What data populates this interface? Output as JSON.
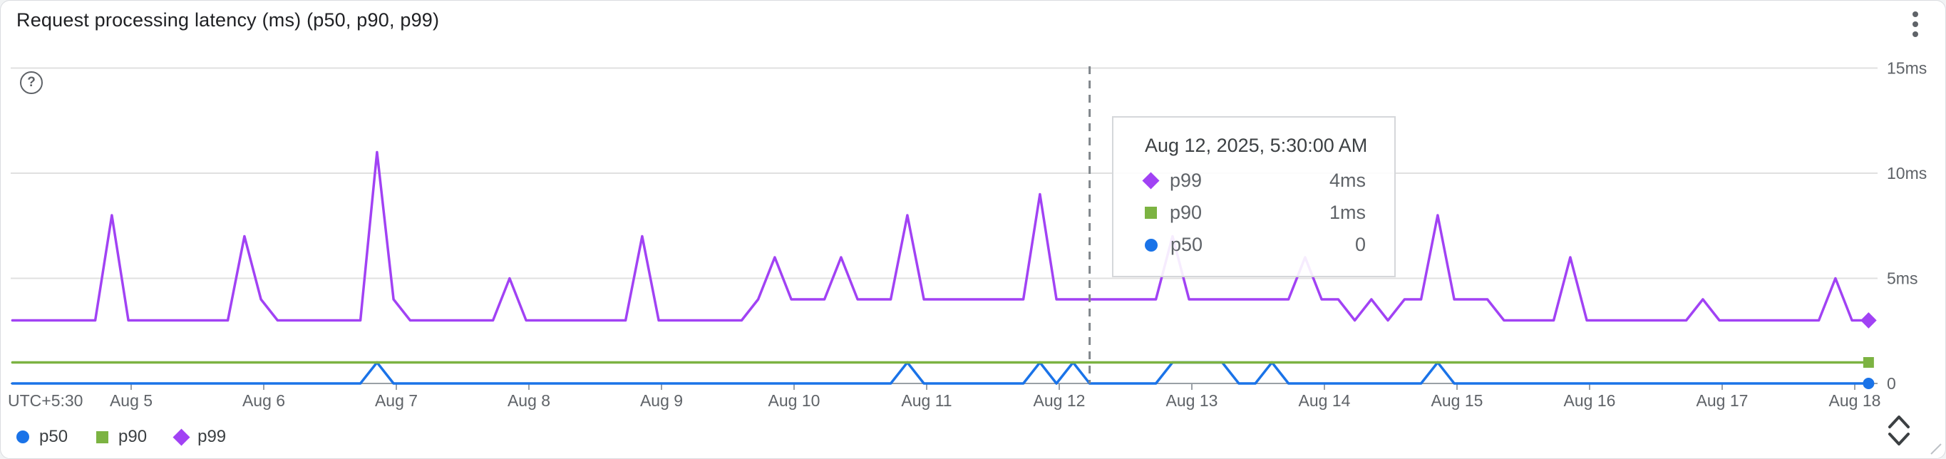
{
  "header": {
    "title": "Request processing latency (ms) (p50, p90, p99)",
    "menu_icon": "kebab-menu",
    "help_icon": "help-circle",
    "help_glyph": "?"
  },
  "chart_data": {
    "type": "line",
    "title": "Request processing latency (ms) (p50, p90, p99)",
    "x_unit": "hours since Aug 4, 2025 00:00 (UTC+5:30)",
    "sample_interval_hours": 3,
    "grid": "horizontal-only",
    "legend_position": "bottom-left",
    "x_axis": {
      "corner_label": "UTC+5:30",
      "tick_labels": [
        "Aug 5",
        "Aug 6",
        "Aug 7",
        "Aug 8",
        "Aug 9",
        "Aug 10",
        "Aug 11",
        "Aug 12",
        "Aug 13",
        "Aug 14",
        "Aug 15",
        "Aug 16",
        "Aug 17",
        "Aug 18"
      ],
      "tick_hours": [
        24,
        48,
        72,
        96,
        120,
        144,
        168,
        192,
        216,
        240,
        264,
        288,
        312,
        336
      ]
    },
    "y_axis": {
      "range_ms": [
        0,
        15
      ],
      "ticks": [
        {
          "value": 0,
          "label": "0"
        },
        {
          "value": 5,
          "label": "5ms"
        },
        {
          "value": 10,
          "label": "10ms"
        },
        {
          "value": 15,
          "label": "15ms"
        }
      ]
    },
    "series": [
      {
        "id": "p50",
        "label": "p50",
        "color": "#1a73e8",
        "marker": "circle",
        "points": [
          [
            2.5,
            0
          ],
          [
            65.5,
            0
          ],
          [
            68.5,
            1
          ],
          [
            71.5,
            0
          ],
          [
            161.5,
            0
          ],
          [
            164.5,
            1
          ],
          [
            167.5,
            0
          ],
          [
            185.5,
            0
          ],
          [
            188.5,
            1
          ],
          [
            191.5,
            0
          ],
          [
            194.5,
            1
          ],
          [
            197.5,
            0
          ],
          [
            209.5,
            0
          ],
          [
            212.5,
            1
          ],
          [
            221.5,
            1
          ],
          [
            224.5,
            0
          ],
          [
            227.5,
            0
          ],
          [
            230.5,
            1
          ],
          [
            233.5,
            0
          ],
          [
            257.5,
            0
          ],
          [
            260.5,
            1
          ],
          [
            263.5,
            0
          ],
          [
            338.5,
            0
          ]
        ]
      },
      {
        "id": "p90",
        "label": "p90",
        "color": "#7cb342",
        "marker": "square",
        "points": [
          [
            2.5,
            1
          ],
          [
            338.5,
            1
          ]
        ]
      },
      {
        "id": "p99",
        "label": "p99",
        "color": "#a142f4",
        "marker": "diamond",
        "points": [
          [
            2.5,
            3
          ],
          [
            17.5,
            3
          ],
          [
            20.5,
            8
          ],
          [
            23.5,
            3
          ],
          [
            41.5,
            3
          ],
          [
            44.5,
            7
          ],
          [
            47.5,
            4
          ],
          [
            50.5,
            3
          ],
          [
            65.5,
            3
          ],
          [
            68.5,
            11
          ],
          [
            71.5,
            4
          ],
          [
            74.5,
            3
          ],
          [
            89.5,
            3
          ],
          [
            92.5,
            5
          ],
          [
            95.5,
            3
          ],
          [
            113.5,
            3
          ],
          [
            116.5,
            7
          ],
          [
            119.5,
            3
          ],
          [
            134.5,
            3
          ],
          [
            137.5,
            4
          ],
          [
            140.5,
            6
          ],
          [
            143.5,
            4
          ],
          [
            149.5,
            4
          ],
          [
            152.5,
            6
          ],
          [
            155.5,
            4
          ],
          [
            161.5,
            4
          ],
          [
            164.5,
            8
          ],
          [
            167.5,
            4
          ],
          [
            185.5,
            4
          ],
          [
            188.5,
            9
          ],
          [
            191.5,
            4
          ],
          [
            209.5,
            4
          ],
          [
            212.5,
            7
          ],
          [
            215.5,
            4
          ],
          [
            233.5,
            4
          ],
          [
            236.5,
            6
          ],
          [
            239.5,
            4
          ],
          [
            242.5,
            4
          ],
          [
            245.5,
            3
          ],
          [
            248.5,
            4
          ],
          [
            251.5,
            3
          ],
          [
            254.5,
            4
          ],
          [
            257.5,
            4
          ],
          [
            260.5,
            8
          ],
          [
            263.5,
            4
          ],
          [
            269.5,
            4
          ],
          [
            272.5,
            3
          ],
          [
            281.5,
            3
          ],
          [
            284.5,
            6
          ],
          [
            287.5,
            3
          ],
          [
            305.5,
            3
          ],
          [
            308.5,
            4
          ],
          [
            311.5,
            3
          ],
          [
            329.5,
            3
          ],
          [
            332.5,
            5
          ],
          [
            335.5,
            3
          ],
          [
            338.5,
            3
          ]
        ]
      }
    ],
    "crosshair": {
      "time_h": 197.5,
      "style": "dashed-vertical",
      "color": "#80868b"
    }
  },
  "tooltip": {
    "title": "Aug 12, 2025, 5:30:00 AM",
    "rows": [
      {
        "label": "p99",
        "value": "4ms",
        "marker": "diamond",
        "color": "#a142f4"
      },
      {
        "label": "p90",
        "value": "1ms",
        "marker": "square",
        "color": "#7cb342"
      },
      {
        "label": "p50",
        "value": "0",
        "marker": "circle",
        "color": "#1a73e8"
      }
    ]
  },
  "colors": {
    "p50_blue": "#1a73e8",
    "p90_green": "#7cb342",
    "p99_purple": "#a142f4",
    "gridline": "#e0e0e0",
    "axis_line": "#9aa0a6",
    "label_gray": "#5f6368",
    "crosshair_gray": "#80868b"
  }
}
